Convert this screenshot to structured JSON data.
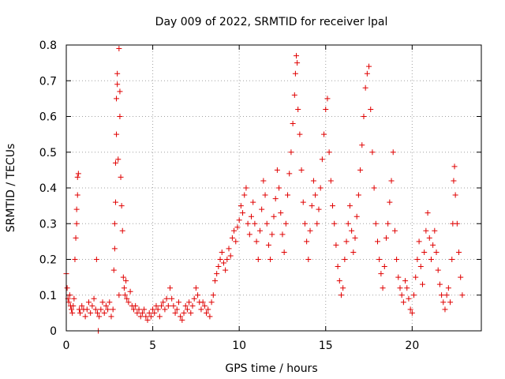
{
  "chart_data": {
    "type": "scatter",
    "title": "Day 009 of 2022, SRMTID for receiver lpal",
    "xlabel": "GPS time / hours",
    "ylabel": "SRMTID / TECUs",
    "xlim": [
      0,
      24
    ],
    "ylim": [
      0,
      0.8
    ],
    "xticks": [
      0,
      5,
      10,
      15,
      20
    ],
    "yticks": [
      0,
      0.1,
      0.2,
      0.3,
      0.4,
      0.5,
      0.6,
      0.7,
      0.8
    ],
    "grid": true,
    "marker": "+",
    "color": "#e00000",
    "series": [
      {
        "name": "SRMTID",
        "points": [
          [
            0.0,
            0.16
          ],
          [
            0.05,
            0.12
          ],
          [
            0.1,
            0.09
          ],
          [
            0.15,
            0.08
          ],
          [
            0.2,
            0.1
          ],
          [
            0.25,
            0.07
          ],
          [
            0.3,
            0.06
          ],
          [
            0.35,
            0.05
          ],
          [
            0.4,
            0.07
          ],
          [
            0.45,
            0.09
          ],
          [
            0.5,
            0.2
          ],
          [
            0.55,
            0.26
          ],
          [
            0.6,
            0.34
          ],
          [
            0.6,
            0.3
          ],
          [
            0.65,
            0.38
          ],
          [
            0.65,
            0.43
          ],
          [
            0.7,
            0.44
          ],
          [
            0.75,
            0.06
          ],
          [
            0.8,
            0.05
          ],
          [
            0.9,
            0.07
          ],
          [
            1.0,
            0.06
          ],
          [
            1.1,
            0.04
          ],
          [
            1.2,
            0.06
          ],
          [
            1.3,
            0.08
          ],
          [
            1.4,
            0.05
          ],
          [
            1.5,
            0.07
          ],
          [
            1.6,
            0.09
          ],
          [
            1.7,
            0.06
          ],
          [
            1.75,
            0.2
          ],
          [
            1.8,
            0.05
          ],
          [
            1.85,
            0.0
          ],
          [
            1.9,
            0.04
          ],
          [
            2.0,
            0.06
          ],
          [
            2.1,
            0.08
          ],
          [
            2.2,
            0.05
          ],
          [
            2.3,
            0.07
          ],
          [
            2.4,
            0.06
          ],
          [
            2.5,
            0.08
          ],
          [
            2.6,
            0.04
          ],
          [
            2.7,
            0.06
          ],
          [
            2.75,
            0.17
          ],
          [
            2.8,
            0.23
          ],
          [
            2.8,
            0.3
          ],
          [
            2.85,
            0.36
          ],
          [
            2.85,
            0.47
          ],
          [
            2.9,
            0.55
          ],
          [
            2.9,
            0.65
          ],
          [
            2.95,
            0.69
          ],
          [
            2.95,
            0.72
          ],
          [
            3.0,
            0.48
          ],
          [
            3.05,
            0.1
          ],
          [
            3.05,
            0.79
          ],
          [
            3.1,
            0.67
          ],
          [
            3.1,
            0.6
          ],
          [
            3.15,
            0.43
          ],
          [
            3.2,
            0.35
          ],
          [
            3.25,
            0.28
          ],
          [
            3.3,
            0.15
          ],
          [
            3.35,
            0.12
          ],
          [
            3.4,
            0.1
          ],
          [
            3.45,
            0.14
          ],
          [
            3.5,
            0.09
          ],
          [
            3.6,
            0.08
          ],
          [
            3.7,
            0.11
          ],
          [
            3.8,
            0.07
          ],
          [
            3.9,
            0.06
          ],
          [
            4.0,
            0.07
          ],
          [
            4.1,
            0.05
          ],
          [
            4.2,
            0.06
          ],
          [
            4.3,
            0.04
          ],
          [
            4.4,
            0.05
          ],
          [
            4.5,
            0.06
          ],
          [
            4.6,
            0.04
          ],
          [
            4.7,
            0.03
          ],
          [
            4.8,
            0.05
          ],
          [
            4.9,
            0.04
          ],
          [
            5.0,
            0.06
          ],
          [
            5.1,
            0.05
          ],
          [
            5.2,
            0.07
          ],
          [
            5.3,
            0.06
          ],
          [
            5.4,
            0.04
          ],
          [
            5.5,
            0.07
          ],
          [
            5.6,
            0.08
          ],
          [
            5.7,
            0.06
          ],
          [
            5.8,
            0.09
          ],
          [
            5.9,
            0.07
          ],
          [
            6.0,
            0.12
          ],
          [
            6.1,
            0.09
          ],
          [
            6.2,
            0.07
          ],
          [
            6.3,
            0.05
          ],
          [
            6.4,
            0.06
          ],
          [
            6.5,
            0.08
          ],
          [
            6.6,
            0.04
          ],
          [
            6.7,
            0.03
          ],
          [
            6.8,
            0.05
          ],
          [
            6.9,
            0.07
          ],
          [
            7.0,
            0.06
          ],
          [
            7.1,
            0.08
          ],
          [
            7.2,
            0.05
          ],
          [
            7.3,
            0.07
          ],
          [
            7.4,
            0.09
          ],
          [
            7.5,
            0.12
          ],
          [
            7.6,
            0.1
          ],
          [
            7.7,
            0.08
          ],
          [
            7.8,
            0.06
          ],
          [
            7.9,
            0.08
          ],
          [
            8.0,
            0.07
          ],
          [
            8.1,
            0.05
          ],
          [
            8.2,
            0.06
          ],
          [
            8.3,
            0.04
          ],
          [
            8.4,
            0.08
          ],
          [
            8.5,
            0.1
          ],
          [
            8.6,
            0.14
          ],
          [
            8.7,
            0.16
          ],
          [
            8.8,
            0.18
          ],
          [
            8.9,
            0.2
          ],
          [
            9.0,
            0.22
          ],
          [
            9.1,
            0.19
          ],
          [
            9.2,
            0.17
          ],
          [
            9.3,
            0.2
          ],
          [
            9.4,
            0.23
          ],
          [
            9.5,
            0.21
          ],
          [
            9.6,
            0.26
          ],
          [
            9.7,
            0.28
          ],
          [
            9.8,
            0.25
          ],
          [
            9.9,
            0.29
          ],
          [
            10.0,
            0.31
          ],
          [
            10.1,
            0.35
          ],
          [
            10.2,
            0.33
          ],
          [
            10.3,
            0.38
          ],
          [
            10.4,
            0.4
          ],
          [
            10.5,
            0.3
          ],
          [
            10.6,
            0.27
          ],
          [
            10.7,
            0.32
          ],
          [
            10.8,
            0.36
          ],
          [
            10.9,
            0.3
          ],
          [
            11.0,
            0.25
          ],
          [
            11.1,
            0.2
          ],
          [
            11.2,
            0.28
          ],
          [
            11.3,
            0.34
          ],
          [
            11.4,
            0.42
          ],
          [
            11.5,
            0.38
          ],
          [
            11.6,
            0.3
          ],
          [
            11.7,
            0.24
          ],
          [
            11.8,
            0.2
          ],
          [
            11.9,
            0.27
          ],
          [
            12.0,
            0.32
          ],
          [
            12.1,
            0.37
          ],
          [
            12.2,
            0.45
          ],
          [
            12.3,
            0.4
          ],
          [
            12.4,
            0.33
          ],
          [
            12.5,
            0.27
          ],
          [
            12.6,
            0.22
          ],
          [
            12.7,
            0.3
          ],
          [
            12.8,
            0.38
          ],
          [
            12.9,
            0.44
          ],
          [
            13.0,
            0.5
          ],
          [
            13.1,
            0.58
          ],
          [
            13.2,
            0.66
          ],
          [
            13.25,
            0.72
          ],
          [
            13.3,
            0.77
          ],
          [
            13.35,
            0.75
          ],
          [
            13.4,
            0.62
          ],
          [
            13.5,
            0.55
          ],
          [
            13.6,
            0.45
          ],
          [
            13.7,
            0.36
          ],
          [
            13.8,
            0.3
          ],
          [
            13.9,
            0.25
          ],
          [
            14.0,
            0.2
          ],
          [
            14.1,
            0.28
          ],
          [
            14.2,
            0.35
          ],
          [
            14.3,
            0.42
          ],
          [
            14.4,
            0.38
          ],
          [
            14.5,
            0.3
          ],
          [
            14.6,
            0.34
          ],
          [
            14.7,
            0.4
          ],
          [
            14.8,
            0.48
          ],
          [
            14.9,
            0.55
          ],
          [
            15.0,
            0.62
          ],
          [
            15.1,
            0.65
          ],
          [
            15.2,
            0.5
          ],
          [
            15.3,
            0.42
          ],
          [
            15.4,
            0.35
          ],
          [
            15.5,
            0.3
          ],
          [
            15.6,
            0.24
          ],
          [
            15.7,
            0.18
          ],
          [
            15.8,
            0.14
          ],
          [
            15.9,
            0.1
          ],
          [
            16.0,
            0.12
          ],
          [
            16.1,
            0.2
          ],
          [
            16.2,
            0.25
          ],
          [
            16.3,
            0.3
          ],
          [
            16.4,
            0.35
          ],
          [
            16.5,
            0.28
          ],
          [
            16.6,
            0.22
          ],
          [
            16.7,
            0.26
          ],
          [
            16.8,
            0.32
          ],
          [
            16.9,
            0.38
          ],
          [
            17.0,
            0.45
          ],
          [
            17.1,
            0.52
          ],
          [
            17.2,
            0.6
          ],
          [
            17.3,
            0.68
          ],
          [
            17.4,
            0.72
          ],
          [
            17.5,
            0.74
          ],
          [
            17.6,
            0.62
          ],
          [
            17.7,
            0.5
          ],
          [
            17.8,
            0.4
          ],
          [
            17.9,
            0.3
          ],
          [
            18.0,
            0.25
          ],
          [
            18.1,
            0.2
          ],
          [
            18.2,
            0.16
          ],
          [
            18.3,
            0.12
          ],
          [
            18.4,
            0.18
          ],
          [
            18.5,
            0.26
          ],
          [
            18.6,
            0.3
          ],
          [
            18.7,
            0.36
          ],
          [
            18.8,
            0.42
          ],
          [
            18.9,
            0.5
          ],
          [
            19.0,
            0.28
          ],
          [
            19.1,
            0.2
          ],
          [
            19.2,
            0.15
          ],
          [
            19.3,
            0.12
          ],
          [
            19.4,
            0.1
          ],
          [
            19.5,
            0.08
          ],
          [
            19.6,
            0.14
          ],
          [
            19.7,
            0.12
          ],
          [
            19.8,
            0.09
          ],
          [
            19.9,
            0.06
          ],
          [
            20.0,
            0.05
          ],
          [
            20.1,
            0.1
          ],
          [
            20.2,
            0.15
          ],
          [
            20.3,
            0.2
          ],
          [
            20.4,
            0.25
          ],
          [
            20.5,
            0.18
          ],
          [
            20.6,
            0.13
          ],
          [
            20.7,
            0.22
          ],
          [
            20.8,
            0.28
          ],
          [
            20.9,
            0.33
          ],
          [
            21.0,
            0.26
          ],
          [
            21.1,
            0.2
          ],
          [
            21.2,
            0.24
          ],
          [
            21.3,
            0.28
          ],
          [
            21.4,
            0.22
          ],
          [
            21.5,
            0.17
          ],
          [
            21.6,
            0.13
          ],
          [
            21.7,
            0.1
          ],
          [
            21.8,
            0.08
          ],
          [
            21.9,
            0.06
          ],
          [
            22.0,
            0.1
          ],
          [
            22.1,
            0.12
          ],
          [
            22.2,
            0.08
          ],
          [
            22.3,
            0.2
          ],
          [
            22.35,
            0.3
          ],
          [
            22.4,
            0.42
          ],
          [
            22.45,
            0.46
          ],
          [
            22.5,
            0.38
          ],
          [
            22.6,
            0.3
          ],
          [
            22.7,
            0.22
          ],
          [
            22.8,
            0.15
          ],
          [
            22.9,
            0.1
          ]
        ]
      }
    ]
  }
}
